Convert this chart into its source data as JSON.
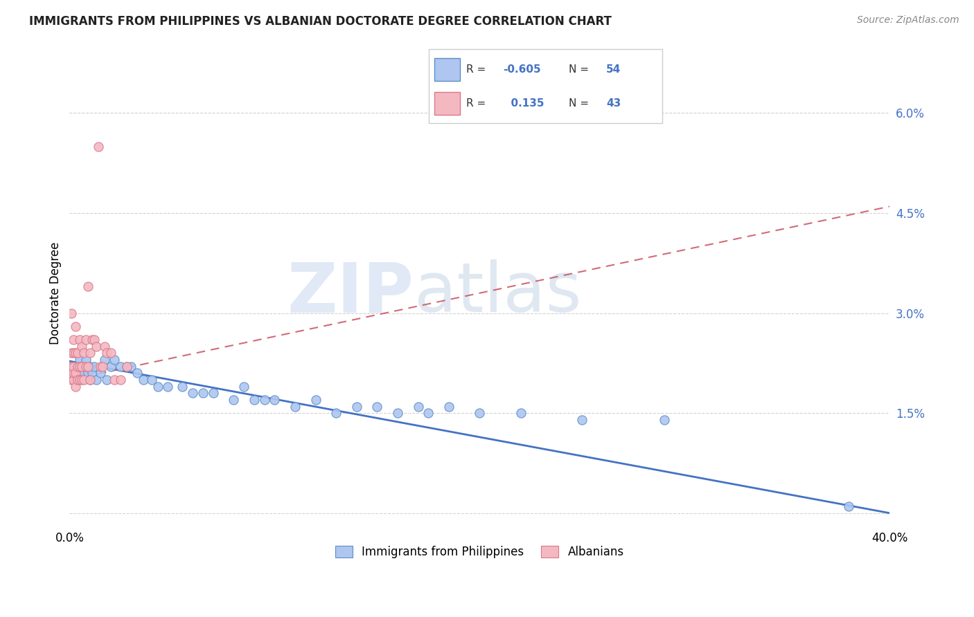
{
  "title": "IMMIGRANTS FROM PHILIPPINES VS ALBANIAN DOCTORATE DEGREE CORRELATION CHART",
  "source": "Source: ZipAtlas.com",
  "ylabel": "Doctorate Degree",
  "y_ticks": [
    0.0,
    0.015,
    0.03,
    0.045,
    0.06
  ],
  "y_tick_labels": [
    "",
    "1.5%",
    "3.0%",
    "4.5%",
    "6.0%"
  ],
  "x_range": [
    0.0,
    0.4
  ],
  "y_range": [
    -0.002,
    0.068
  ],
  "legend_entries": [
    {
      "color": "#aec6f0",
      "border": "#5b8dc8",
      "R": "-0.605",
      "N": "54",
      "label": "Immigrants from Philippines"
    },
    {
      "color": "#f4b8c1",
      "border": "#d9788a",
      "R": "0.135",
      "N": "43",
      "label": "Albanians"
    }
  ],
  "blue_color": "#aec6f0",
  "blue_border": "#5b8dc8",
  "blue_line_color": "#4472c4",
  "pink_color": "#f4b8c1",
  "pink_border": "#d9788a",
  "pink_line_color": "#c9515e",
  "watermark_zip": "ZIP",
  "watermark_atlas": "atlas",
  "blue_points_x": [
    0.001,
    0.002,
    0.003,
    0.003,
    0.004,
    0.005,
    0.005,
    0.006,
    0.006,
    0.007,
    0.007,
    0.008,
    0.009,
    0.01,
    0.01,
    0.011,
    0.012,
    0.013,
    0.015,
    0.017,
    0.018,
    0.02,
    0.022,
    0.025,
    0.028,
    0.03,
    0.033,
    0.036,
    0.04,
    0.043,
    0.048,
    0.055,
    0.06,
    0.065,
    0.07,
    0.08,
    0.085,
    0.09,
    0.095,
    0.1,
    0.11,
    0.12,
    0.13,
    0.14,
    0.15,
    0.16,
    0.17,
    0.175,
    0.185,
    0.2,
    0.22,
    0.25,
    0.29,
    0.38
  ],
  "blue_points_y": [
    0.022,
    0.021,
    0.022,
    0.02,
    0.021,
    0.023,
    0.021,
    0.022,
    0.021,
    0.022,
    0.021,
    0.023,
    0.021,
    0.022,
    0.02,
    0.021,
    0.022,
    0.02,
    0.021,
    0.023,
    0.02,
    0.022,
    0.023,
    0.022,
    0.022,
    0.022,
    0.021,
    0.02,
    0.02,
    0.019,
    0.019,
    0.019,
    0.018,
    0.018,
    0.018,
    0.017,
    0.019,
    0.017,
    0.017,
    0.017,
    0.016,
    0.017,
    0.015,
    0.016,
    0.016,
    0.015,
    0.016,
    0.015,
    0.016,
    0.015,
    0.015,
    0.014,
    0.014,
    0.001
  ],
  "pink_points_x": [
    0.001,
    0.001,
    0.001,
    0.001,
    0.001,
    0.002,
    0.002,
    0.002,
    0.002,
    0.002,
    0.003,
    0.003,
    0.003,
    0.003,
    0.004,
    0.004,
    0.004,
    0.005,
    0.005,
    0.005,
    0.006,
    0.006,
    0.006,
    0.007,
    0.007,
    0.008,
    0.008,
    0.009,
    0.009,
    0.01,
    0.01,
    0.011,
    0.012,
    0.013,
    0.014,
    0.015,
    0.016,
    0.017,
    0.018,
    0.02,
    0.022,
    0.025,
    0.028
  ],
  "pink_points_y": [
    0.02,
    0.021,
    0.022,
    0.024,
    0.03,
    0.02,
    0.021,
    0.022,
    0.024,
    0.026,
    0.019,
    0.021,
    0.024,
    0.028,
    0.02,
    0.022,
    0.024,
    0.02,
    0.022,
    0.026,
    0.02,
    0.022,
    0.025,
    0.02,
    0.024,
    0.022,
    0.026,
    0.022,
    0.034,
    0.02,
    0.024,
    0.026,
    0.026,
    0.025,
    0.055,
    0.022,
    0.022,
    0.025,
    0.024,
    0.024,
    0.02,
    0.02,
    0.022
  ],
  "blue_trend_x": [
    0.0,
    0.4
  ],
  "blue_trend_y": [
    0.0228,
    0.0
  ],
  "pink_trend_x": [
    0.0,
    0.4
  ],
  "pink_trend_y": [
    0.02,
    0.046
  ]
}
